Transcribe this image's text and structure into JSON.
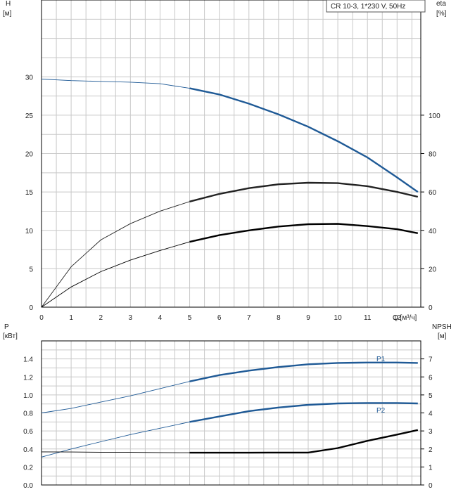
{
  "chart_data": [
    {
      "type": "line",
      "title": "CR 10-3, 1*230 V, 50Hz",
      "ylabel": "H",
      "yunit": "[м]",
      "ylabel_right": "eta",
      "yunit_right": "[%]",
      "xlabel": "Q [м³/ч]",
      "xlim": [
        0,
        12.8
      ],
      "ylim": [
        0,
        40
      ],
      "ylim_right": [
        0,
        160
      ],
      "x_ticks": [
        "0",
        "1",
        "2",
        "3",
        "4",
        "5",
        "6",
        "7",
        "8",
        "9",
        "10",
        "11",
        "12"
      ],
      "y_ticks": [
        "0",
        "5",
        "10",
        "15",
        "20",
        "25",
        "30"
      ],
      "y_ticks_right": [
        "0",
        "20",
        "40",
        "60",
        "80",
        "100"
      ],
      "grid": true,
      "legend": "top-right",
      "series": [
        {
          "axis": "left",
          "color": "#1f5a96",
          "x": [
            0,
            1,
            2,
            3,
            4,
            5,
            6,
            7,
            8,
            9,
            10,
            11,
            12,
            12.7
          ],
          "y": [
            29.7,
            29.5,
            29.4,
            29.3,
            29.1,
            28.5,
            27.7,
            26.5,
            25.1,
            23.5,
            21.6,
            19.5,
            16.9,
            15.0
          ]
        },
        {
          "axis": "right",
          "color": "#222222",
          "x": [
            0,
            1,
            2,
            3,
            4,
            5,
            6,
            7,
            8,
            9,
            10,
            11,
            12,
            12.7
          ],
          "y": [
            0,
            21,
            35,
            43.5,
            50,
            55,
            59,
            62,
            64,
            64.8,
            64.6,
            63,
            60,
            57.5
          ]
        },
        {
          "axis": "right",
          "color": "#000000",
          "x": [
            0,
            1,
            2,
            3,
            4,
            5,
            6,
            7,
            8,
            9,
            10,
            11,
            12,
            12.7
          ],
          "y": [
            0,
            10.5,
            18.5,
            24.5,
            29.5,
            34,
            37.5,
            40,
            42,
            43.2,
            43.4,
            42.2,
            40.6,
            38.5
          ]
        }
      ]
    },
    {
      "type": "line",
      "ylabel": "P",
      "yunit": "[кВт]",
      "ylabel_right": "NPSH",
      "yunit_right": "[м]",
      "xlim": [
        0,
        12.8
      ],
      "ylim": [
        0,
        1.6
      ],
      "ylim_right": [
        0,
        8
      ],
      "y_ticks": [
        "0.0",
        "0.2",
        "0.4",
        "0.6",
        "0.8",
        "1.0",
        "1.2",
        "1.4"
      ],
      "y_ticks_right": [
        "0",
        "1",
        "2",
        "3",
        "4",
        "5",
        "6",
        "7"
      ],
      "grid": true,
      "series": [
        {
          "name": "P1",
          "axis": "left",
          "color": "#1f5a96",
          "x": [
            0,
            1,
            2,
            3,
            4,
            5,
            6,
            7,
            8,
            9,
            10,
            11,
            12,
            12.7
          ],
          "y": [
            0.8,
            0.85,
            0.92,
            0.99,
            1.07,
            1.15,
            1.22,
            1.27,
            1.31,
            1.34,
            1.355,
            1.36,
            1.36,
            1.355
          ]
        },
        {
          "name": "P2",
          "axis": "left",
          "color": "#1f5a96",
          "x": [
            0,
            1,
            2,
            3,
            4,
            5,
            6,
            7,
            8,
            9,
            10,
            11,
            12,
            12.7
          ],
          "y": [
            0.31,
            0.4,
            0.48,
            0.56,
            0.63,
            0.7,
            0.76,
            0.82,
            0.86,
            0.89,
            0.905,
            0.91,
            0.91,
            0.905
          ]
        },
        {
          "axis": "right",
          "color": "#000000",
          "x": [
            0,
            1,
            2,
            3,
            4,
            5,
            6,
            7,
            8,
            9,
            10,
            11,
            12,
            12.7
          ],
          "y": [
            1.84,
            1.83,
            1.82,
            1.81,
            1.8,
            1.79,
            1.79,
            1.79,
            1.8,
            1.8,
            2.05,
            2.45,
            2.8,
            3.05
          ]
        }
      ]
    }
  ]
}
